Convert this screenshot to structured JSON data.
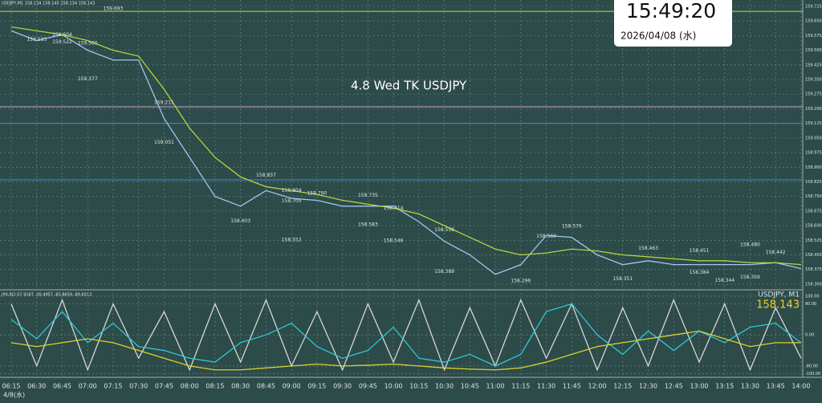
{
  "symbol_info": "USDJPY,M1 158.134 158.145 158.134 158.143",
  "clock": {
    "time": "15:49:20",
    "date": "2026/04/08 (水)"
  },
  "date_footer": "4/8(水)",
  "chart_data": [
    {
      "type": "line",
      "title": "4.8 Wed TK USDJPY",
      "categories": [
        "06:15",
        "06:30",
        "06:45",
        "07:00",
        "07:15",
        "07:30",
        "07:45",
        "08:00",
        "08:15",
        "08:30",
        "08:45",
        "09:00",
        "09:15",
        "09:30",
        "09:45",
        "10:00",
        "10:15",
        "10:30",
        "10:45",
        "11:00",
        "11:15",
        "11:30",
        "11:45",
        "12:00",
        "12:15",
        "12:30",
        "12:45",
        "13:00",
        "13:15",
        "13:30",
        "13:45",
        "14:00"
      ],
      "series": [
        {
          "color": "#9fc6f0",
          "values": [
            159.6,
            159.55,
            159.58,
            159.5,
            159.45,
            159.45,
            159.15,
            158.95,
            158.75,
            158.7,
            158.78,
            158.74,
            158.73,
            158.7,
            158.7,
            158.7,
            158.62,
            158.52,
            158.45,
            158.35,
            158.4,
            158.55,
            158.54,
            158.45,
            158.4,
            158.42,
            158.4,
            158.4,
            158.4,
            158.4,
            158.41,
            158.38
          ]
        },
        {
          "color": "#b6d43a",
          "values": [
            159.62,
            159.6,
            159.58,
            159.55,
            159.5,
            159.47,
            159.3,
            159.1,
            158.95,
            158.85,
            158.8,
            158.78,
            158.76,
            158.73,
            158.71,
            158.69,
            158.66,
            158.6,
            158.54,
            158.48,
            158.45,
            158.46,
            158.48,
            158.47,
            158.45,
            158.44,
            158.43,
            158.42,
            158.42,
            158.41,
            158.41,
            158.4
          ]
        }
      ],
      "levels": [
        {
          "value": 159.21,
          "color": "#c9a3d6"
        },
        {
          "value": 159.125,
          "color": "#3a8fd9"
        },
        {
          "value": 158.835,
          "color": "#3a8fd9"
        },
        {
          "value": 159.7,
          "color": "#c8d84a"
        }
      ],
      "annotations": [
        {
          "value": 159.693,
          "label": "159.693",
          "x": "07:15"
        },
        {
          "value": 159.604,
          "label": "159.604",
          "x": "06:45"
        },
        {
          "value": 159.533,
          "label": "159.533",
          "x": "06:30"
        },
        {
          "value": 159.56,
          "label": "159.560",
          "x": "07:00"
        },
        {
          "value": 159.522,
          "label": "159.522",
          "x": "06:45"
        },
        {
          "value": 159.377,
          "label": "159.377",
          "x": "07:00"
        },
        {
          "value": 159.211,
          "label": "159.211",
          "x": "07:45"
        },
        {
          "value": 159.051,
          "label": "159.051",
          "x": "07:45"
        },
        {
          "value": 158.837,
          "label": "158.837",
          "x": "08:45"
        },
        {
          "value": 158.804,
          "label": "158.804",
          "x": "09:00"
        },
        {
          "value": 158.705,
          "label": "158.705",
          "x": "09:00"
        },
        {
          "value": 158.79,
          "label": "158.790",
          "x": "09:15"
        },
        {
          "value": 158.603,
          "label": "158.603",
          "x": "08:30"
        },
        {
          "value": 158.552,
          "label": "158.552",
          "x": "09:00"
        },
        {
          "value": 158.735,
          "label": "158.735",
          "x": "09:45"
        },
        {
          "value": 158.714,
          "label": "158.714",
          "x": "10:00"
        },
        {
          "value": 158.583,
          "label": "158.583",
          "x": "09:45"
        },
        {
          "value": 158.546,
          "label": "158.546",
          "x": "10:00"
        },
        {
          "value": 158.558,
          "label": "158.558",
          "x": "10:30"
        },
        {
          "value": 158.389,
          "label": "158.389",
          "x": "10:30"
        },
        {
          "value": 158.296,
          "label": "158.296",
          "x": "11:15"
        },
        {
          "value": 158.569,
          "label": "158.569",
          "x": "11:30"
        },
        {
          "value": 158.576,
          "label": "158.576",
          "x": "11:45"
        },
        {
          "value": 158.351,
          "label": "158.351",
          "x": "12:15"
        },
        {
          "value": 158.463,
          "label": "158.463",
          "x": "12:30"
        },
        {
          "value": 158.384,
          "label": "158.384",
          "x": "13:00"
        },
        {
          "value": 158.451,
          "label": "158.451",
          "x": "13:00"
        },
        {
          "value": 158.344,
          "label": "158.344",
          "x": "13:15"
        },
        {
          "value": 158.48,
          "label": "158.480",
          "x": "13:30"
        },
        {
          "value": 158.359,
          "label": "158.359",
          "x": "13:30"
        },
        {
          "value": 158.442,
          "label": "158.442",
          "x": "13:45"
        }
      ],
      "ylim": [
        158.275,
        159.758
      ],
      "yticks": [
        {
          "value": 159.725,
          "label": "159.725"
        },
        {
          "value": 159.65,
          "label": "159.650"
        },
        {
          "value": 159.575,
          "label": "159.575"
        },
        {
          "value": 159.5,
          "label": "159.500"
        },
        {
          "value": 159.425,
          "label": "159.425"
        },
        {
          "value": 159.35,
          "label": "159.350"
        },
        {
          "value": 159.275,
          "label": "159.275"
        },
        {
          "value": 159.2,
          "label": "159.200"
        },
        {
          "value": 159.125,
          "label": "159.125"
        },
        {
          "value": 159.05,
          "label": "159.050"
        },
        {
          "value": 158.975,
          "label": "158.975"
        },
        {
          "value": 158.9,
          "label": "158.900"
        },
        {
          "value": 158.825,
          "label": "158.825"
        },
        {
          "value": 158.75,
          "label": "158.750"
        },
        {
          "value": 158.675,
          "label": "158.675"
        },
        {
          "value": 158.6,
          "label": "158.600"
        },
        {
          "value": 158.525,
          "label": "158.525"
        },
        {
          "value": 158.45,
          "label": "158.450"
        },
        {
          "value": 158.375,
          "label": "158.375"
        },
        {
          "value": 158.3,
          "label": "158.300"
        }
      ],
      "grid": true
    },
    {
      "type": "line",
      "title": "JPX-RCI 67.9167 -30.4957 -85.8659 -89.6013",
      "symbol": "USDJPY, M1",
      "last_price": "158.143",
      "categories": [
        "06:15",
        "06:30",
        "06:45",
        "07:00",
        "07:15",
        "07:30",
        "07:45",
        "08:00",
        "08:15",
        "08:30",
        "08:45",
        "09:00",
        "09:15",
        "09:30",
        "09:45",
        "10:00",
        "10:15",
        "10:30",
        "10:45",
        "11:00",
        "11:15",
        "11:30",
        "11:45",
        "12:00",
        "12:15",
        "12:30",
        "12:45",
        "13:00",
        "13:15",
        "13:30",
        "13:45",
        "14:00"
      ],
      "series": [
        {
          "color": "#d6d6d6",
          "values": [
            80,
            -80,
            90,
            -90,
            80,
            -60,
            60,
            -90,
            80,
            -70,
            90,
            -80,
            60,
            -90,
            80,
            -70,
            90,
            -90,
            70,
            -80,
            90,
            -60,
            80,
            -90,
            70,
            -80,
            90,
            -70,
            80,
            -90,
            70,
            -60
          ]
        },
        {
          "color": "#2fc7d6",
          "values": [
            40,
            -10,
            60,
            -20,
            30,
            -30,
            -40,
            -60,
            -70,
            -20,
            0,
            30,
            -30,
            -60,
            -40,
            20,
            -60,
            -70,
            -50,
            -80,
            -50,
            60,
            80,
            0,
            -50,
            10,
            -40,
            10,
            -20,
            20,
            30,
            -20
          ]
        },
        {
          "color": "#d9d22e",
          "values": [
            -20,
            -30,
            -20,
            -10,
            -20,
            -40,
            -60,
            -80,
            -90,
            -90,
            -85,
            -80,
            -75,
            -80,
            -78,
            -75,
            -80,
            -85,
            -88,
            -90,
            -85,
            -70,
            -50,
            -30,
            -20,
            -10,
            0,
            10,
            -10,
            -30,
            -20,
            -20
          ]
        }
      ],
      "ylim": [
        -105,
        112
      ],
      "yticks": [
        {
          "value": 100,
          "label": "100.00"
        },
        {
          "value": 80,
          "label": "80.00"
        },
        {
          "value": 0,
          "label": "0.00"
        },
        {
          "value": -80,
          "label": "-80.00"
        },
        {
          "value": -100,
          "label": "-100.00"
        }
      ],
      "grid": true
    }
  ]
}
